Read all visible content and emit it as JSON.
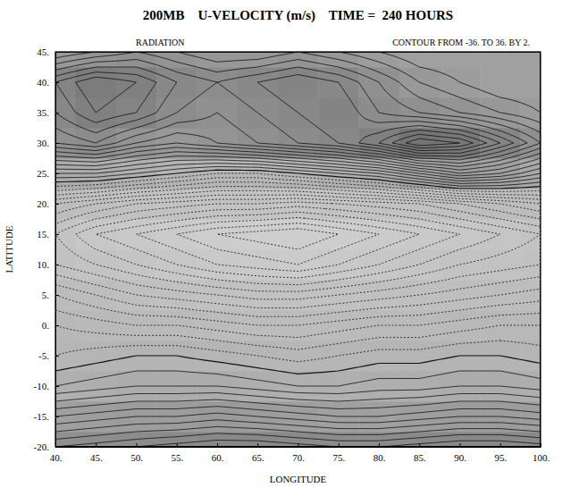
{
  "chart_data": {
    "type": "contour",
    "title": "200MB    U-VELOCITY (m/s)    TIME =  240 HOURS",
    "subtitle": "RADIATION",
    "annotations": [
      "CONTOUR FROM -36. TO 36. BY 2."
    ],
    "x_label": "LONGITUDE",
    "y_label": "LATITUDE",
    "xlim": [
      40,
      100
    ],
    "ylim": [
      -20,
      45
    ],
    "xticks": [
      {
        "value": 40,
        "label": "40."
      },
      {
        "value": 45,
        "label": "45."
      },
      {
        "value": 50,
        "label": "50."
      },
      {
        "value": 55,
        "label": "55."
      },
      {
        "value": 60,
        "label": "60."
      },
      {
        "value": 65,
        "label": "65."
      },
      {
        "value": 70,
        "label": "70."
      },
      {
        "value": 75,
        "label": "75."
      },
      {
        "value": 80,
        "label": "80."
      },
      {
        "value": 85,
        "label": "85."
      },
      {
        "value": 90,
        "label": "90."
      },
      {
        "value": 95,
        "label": "95."
      },
      {
        "value": 100,
        "label": "100."
      }
    ],
    "yticks": [
      {
        "value": -20,
        "label": "-20."
      },
      {
        "value": -15,
        "label": "-15."
      },
      {
        "value": -10,
        "label": "-10."
      },
      {
        "value": -5,
        "label": "-5."
      },
      {
        "value": 0,
        "label": "0."
      },
      {
        "value": 5,
        "label": "5."
      },
      {
        "value": 10,
        "label": "10."
      },
      {
        "value": 15,
        "label": "15."
      },
      {
        "value": 20,
        "label": "20."
      },
      {
        "value": 25,
        "label": "25."
      },
      {
        "value": 30,
        "label": "30."
      },
      {
        "value": 35,
        "label": "35."
      },
      {
        "value": 40,
        "label": "40."
      },
      {
        "value": 45,
        "label": "45."
      }
    ],
    "levels": [
      -36,
      -34,
      -32,
      -30,
      -28,
      -26,
      -24,
      -22,
      -20,
      -18,
      -16,
      -14,
      -12,
      -10,
      -8,
      -6,
      -4,
      -2,
      0,
      2,
      4,
      6,
      8,
      10,
      12,
      14,
      16,
      18,
      20,
      22,
      24,
      26,
      28,
      30,
      32,
      34,
      36
    ],
    "x": [
      40,
      45,
      50,
      55,
      60,
      65,
      70,
      75,
      80,
      85,
      90,
      95,
      100
    ],
    "y": [
      -20,
      -15,
      -10,
      -5,
      0,
      5,
      10,
      15,
      20,
      25,
      30,
      35,
      40,
      45
    ],
    "values": [
      [
        18,
        19,
        20,
        21,
        22,
        22,
        21,
        20,
        20,
        21,
        22,
        22,
        21
      ],
      [
        10,
        11,
        12,
        12,
        13,
        12,
        11,
        10,
        10,
        11,
        12,
        12,
        11
      ],
      [
        2,
        3,
        4,
        4,
        4,
        3,
        2,
        2,
        3,
        3,
        4,
        4,
        3
      ],
      [
        -2,
        -1,
        0,
        0,
        -1,
        -2,
        -3,
        -2,
        -1,
        -1,
        0,
        0,
        -1
      ],
      [
        -4,
        -5,
        -6,
        -6,
        -7,
        -8,
        -8,
        -7,
        -6,
        -6,
        -5,
        -4,
        -4
      ],
      [
        -8,
        -10,
        -12,
        -13,
        -14,
        -15,
        -15,
        -14,
        -13,
        -12,
        -11,
        -10,
        -9
      ],
      [
        -14,
        -16,
        -18,
        -20,
        -22,
        -23,
        -24,
        -22,
        -20,
        -18,
        -16,
        -15,
        -14
      ],
      [
        -16,
        -20,
        -22,
        -24,
        -26,
        -27,
        -28,
        -26,
        -24,
        -22,
        -20,
        -18,
        -16
      ],
      [
        -10,
        -12,
        -14,
        -15,
        -16,
        -16,
        -17,
        -16,
        -15,
        -14,
        -12,
        -10,
        -8
      ],
      [
        4,
        4,
        2,
        0,
        -2,
        -2,
        0,
        2,
        4,
        8,
        12,
        10,
        6
      ],
      [
        18,
        20,
        16,
        14,
        16,
        18,
        20,
        22,
        26,
        32,
        30,
        24,
        18
      ],
      [
        22,
        26,
        24,
        20,
        18,
        20,
        22,
        24,
        20,
        18,
        16,
        14,
        12
      ],
      [
        24,
        28,
        26,
        22,
        20,
        22,
        24,
        22,
        18,
        14,
        12,
        10,
        10
      ],
      [
        14,
        16,
        18,
        16,
        14,
        14,
        16,
        14,
        12,
        10,
        10,
        10,
        10
      ]
    ]
  }
}
